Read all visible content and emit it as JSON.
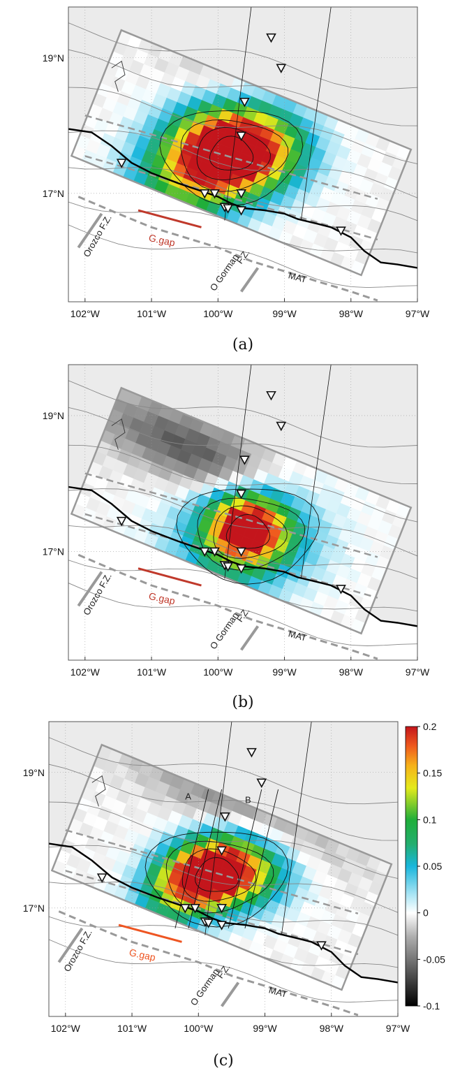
{
  "panels": [
    {
      "caption": "(a)",
      "gap_color": "#c0392b",
      "peak": {
        "lon": -100.05,
        "lat": 17.55,
        "amp": 0.2,
        "sx": 0.75,
        "sy": 0.5,
        "rot": 25
      },
      "secondary": {
        "lon": -99.55,
        "lat": 17.6,
        "amp": 0.13,
        "sx": 0.6,
        "sy": 0.4,
        "rot": 0
      },
      "negative": {
        "lon": -99.6,
        "lat": 18.5,
        "amp": -0.03,
        "sx": 0.7,
        "sy": 0.25,
        "rot": -20
      },
      "profiles": false
    },
    {
      "caption": "(b)",
      "gap_color": "#c0392b",
      "peak": {
        "lon": -99.55,
        "lat": 17.35,
        "amp": 0.2,
        "sx": 0.4,
        "sy": 0.35,
        "rot": 0
      },
      "secondary": {
        "lon": -99.55,
        "lat": 17.2,
        "amp": 0.08,
        "sx": 0.8,
        "sy": 0.55,
        "rot": 10
      },
      "negative": {
        "lon": -100.4,
        "lat": 18.5,
        "amp": -0.06,
        "sx": 1.1,
        "sy": 0.35,
        "rot": -25
      },
      "profiles": false
    },
    {
      "caption": "(c)",
      "gap_color": "#ee5522",
      "peak": {
        "lon": -100.0,
        "lat": 17.45,
        "amp": 0.2,
        "sx": 0.55,
        "sy": 0.35,
        "rot": 25
      },
      "secondary": {
        "lon": -99.45,
        "lat": 17.5,
        "amp": 0.14,
        "sx": 0.55,
        "sy": 0.35,
        "rot": 0
      },
      "negative": {
        "lon": -99.4,
        "lat": 18.5,
        "amp": -0.035,
        "sx": 1.2,
        "sy": 0.3,
        "rot": -25
      },
      "profiles": true
    }
  ],
  "map": {
    "lon_ticks": [
      "102°W",
      "101°W",
      "100°W",
      "99°W",
      "98°W",
      "97°W"
    ],
    "lat_ticks": [
      "19°N",
      "17°N"
    ],
    "labels": {
      "orozco": "Orozco F.Z.",
      "gap": "G.gap",
      "ogorman_1": "O Gorman",
      "ogorman_2": "F.Z.",
      "mat": "MAT",
      "profile_a": "A",
      "profile_b": "B"
    },
    "stations": [
      {
        "lon": -99.2,
        "lat": 19.3
      },
      {
        "lon": -99.05,
        "lat": 18.85
      },
      {
        "lon": -99.6,
        "lat": 18.35
      },
      {
        "lon": -99.65,
        "lat": 17.85
      },
      {
        "lon": -101.45,
        "lat": 17.45
      },
      {
        "lon": -100.2,
        "lat": 17.0
      },
      {
        "lon": -100.05,
        "lat": 17.0
      },
      {
        "lon": -99.65,
        "lat": 17.0
      },
      {
        "lon": -99.9,
        "lat": 16.8
      },
      {
        "lon": -99.85,
        "lat": 16.78
      },
      {
        "lon": -99.65,
        "lat": 16.75
      },
      {
        "lon": -98.15,
        "lat": 16.45
      }
    ]
  },
  "colorbar": {
    "ticks": [
      "0.2",
      "0.15",
      "0.1",
      "0.05",
      "0",
      "-0.05",
      "-0.1"
    ],
    "vmin": -0.1,
    "vmax": 0.2
  },
  "colors": {
    "land": "#ebebeb",
    "coast": "#000000",
    "grid_outline": "#999999",
    "trench": "#999999"
  }
}
